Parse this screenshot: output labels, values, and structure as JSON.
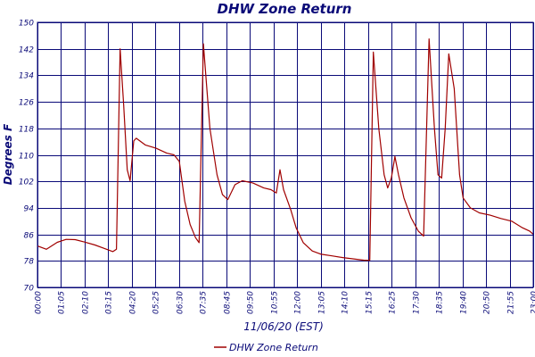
{
  "chart_data": {
    "type": "line",
    "title": "DHW Zone Return",
    "xlabel": "11/06/20 (EST)",
    "ylabel": "Degrees F",
    "ylim": [
      70,
      150
    ],
    "yticks": [
      "70",
      "78",
      "86",
      "94",
      "102",
      "110",
      "118",
      "126",
      "134",
      "142",
      "150"
    ],
    "xlim": [
      "00:00",
      "23:00"
    ],
    "xticks": [
      "00:00",
      "01:05",
      "02:10",
      "03:15",
      "04:20",
      "05:25",
      "06:30",
      "07:35",
      "08:45",
      "09:50",
      "10:55",
      "12:00",
      "13:05",
      "14:10",
      "15:15",
      "16:25",
      "17:30",
      "18:35",
      "19:40",
      "20:50",
      "21:55",
      "23:00"
    ],
    "grid": true,
    "legend_position": "bottom",
    "colors": {
      "series": "#a00000",
      "axis": "#0a0a78"
    },
    "series": [
      {
        "name": "DHW Zone Return",
        "points": [
          [
            "00:00",
            82.5
          ],
          [
            "00:25",
            81.5
          ],
          [
            "00:55",
            83.6
          ],
          [
            "01:20",
            84.5
          ],
          [
            "01:45",
            84.4
          ],
          [
            "02:10",
            83.7
          ],
          [
            "02:40",
            82.8
          ],
          [
            "03:05",
            81.8
          ],
          [
            "03:30",
            80.8
          ],
          [
            "03:40",
            81.5
          ],
          [
            "03:50",
            142.0
          ],
          [
            "04:00",
            125.0
          ],
          [
            "04:10",
            105.5
          ],
          [
            "04:18",
            102.2
          ],
          [
            "04:28",
            114.2
          ],
          [
            "04:35",
            115.0
          ],
          [
            "05:00",
            113.0
          ],
          [
            "05:30",
            112.0
          ],
          [
            "06:00",
            110.5
          ],
          [
            "06:20",
            110.0
          ],
          [
            "06:35",
            108.0
          ],
          [
            "06:50",
            96.0
          ],
          [
            "07:05",
            89.0
          ],
          [
            "07:20",
            85.0
          ],
          [
            "07:30",
            83.5
          ],
          [
            "07:42",
            143.5
          ],
          [
            "08:00",
            118.0
          ],
          [
            "08:20",
            104.0
          ],
          [
            "08:35",
            98.0
          ],
          [
            "08:50",
            96.5
          ],
          [
            "09:10",
            101.0
          ],
          [
            "09:30",
            102.2
          ],
          [
            "10:00",
            101.5
          ],
          [
            "10:30",
            100.0
          ],
          [
            "10:50",
            99.5
          ],
          [
            "11:05",
            98.5
          ],
          [
            "11:15",
            105.5
          ],
          [
            "11:25",
            99.5
          ],
          [
            "11:45",
            93.5
          ],
          [
            "12:00",
            88.0
          ],
          [
            "12:20",
            83.5
          ],
          [
            "12:45",
            81.0
          ],
          [
            "13:10",
            80.0
          ],
          [
            "13:40",
            79.5
          ],
          [
            "14:10",
            79.0
          ],
          [
            "14:40",
            78.6
          ],
          [
            "15:10",
            78.2
          ],
          [
            "15:25",
            78.2
          ],
          [
            "15:35",
            141.0
          ],
          [
            "15:50",
            118.0
          ],
          [
            "16:05",
            104.0
          ],
          [
            "16:15",
            100.0
          ],
          [
            "16:25",
            103.0
          ],
          [
            "16:35",
            109.5
          ],
          [
            "16:45",
            104.0
          ],
          [
            "17:00",
            97.0
          ],
          [
            "17:20",
            91.0
          ],
          [
            "17:40",
            87.0
          ],
          [
            "17:55",
            85.5
          ],
          [
            "18:10",
            145.0
          ],
          [
            "18:25",
            118.0
          ],
          [
            "18:35",
            104.0
          ],
          [
            "18:45",
            103.0
          ],
          [
            "18:55",
            118.0
          ],
          [
            "19:05",
            140.5
          ],
          [
            "19:20",
            130.0
          ],
          [
            "19:35",
            104.0
          ],
          [
            "19:45",
            97.0
          ],
          [
            "20:05",
            94.0
          ],
          [
            "20:30",
            92.5
          ],
          [
            "21:00",
            91.8
          ],
          [
            "21:30",
            90.8
          ],
          [
            "22:00",
            90.0
          ],
          [
            "22:30",
            88.0
          ],
          [
            "22:50",
            87.0
          ],
          [
            "23:00",
            86.0
          ]
        ]
      }
    ]
  }
}
